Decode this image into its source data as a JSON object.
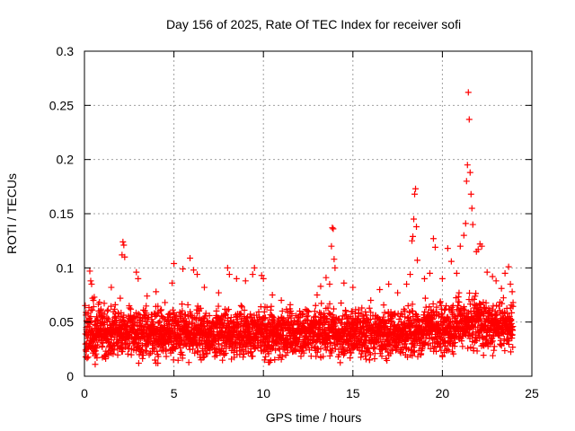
{
  "chart_data": {
    "type": "scatter",
    "title": "Day 156 of 2025, Rate Of TEC Index for receiver sofi",
    "xlabel": "GPS time / hours",
    "ylabel": "ROTI / TECUs",
    "xlim": [
      0,
      25
    ],
    "ylim": [
      0,
      0.3
    ],
    "x_ticks": [
      0,
      5,
      10,
      15,
      20,
      25
    ],
    "x_tick_labels": [
      "0",
      "5",
      "10",
      "15",
      "20",
      "25"
    ],
    "y_ticks": [
      0,
      0.05,
      0.1,
      0.15,
      0.2,
      0.25,
      0.3
    ],
    "y_tick_labels": [
      "0",
      "0.05",
      "0.1",
      "0.15",
      "0.2",
      "0.25",
      "0.3"
    ],
    "grid": true,
    "marker": "+",
    "colors": {
      "points": "#ff0000",
      "grid": "#a0a0a0",
      "axes": "#000000"
    },
    "series": [
      {
        "name": "ROTI",
        "points": [
          [
            0.1,
            0.045
          ],
          [
            0.2,
            0.058
          ],
          [
            0.3,
            0.097
          ],
          [
            0.35,
            0.088
          ],
          [
            0.4,
            0.085
          ],
          [
            0.45,
            0.072
          ],
          [
            0.5,
            0.07
          ],
          [
            0.55,
            0.073
          ],
          [
            0.6,
            0.011
          ],
          [
            0.7,
            0.017
          ],
          [
            1.0,
            0.055
          ],
          [
            1.5,
            0.082
          ],
          [
            2.0,
            0.072
          ],
          [
            2.1,
            0.112
          ],
          [
            2.15,
            0.124
          ],
          [
            2.2,
            0.121
          ],
          [
            2.25,
            0.11
          ],
          [
            2.5,
            0.065
          ],
          [
            2.9,
            0.096
          ],
          [
            3.0,
            0.09
          ],
          [
            3.5,
            0.074
          ],
          [
            4.0,
            0.078
          ],
          [
            4.5,
            0.068
          ],
          [
            4.9,
            0.086
          ],
          [
            5.0,
            0.104
          ],
          [
            5.5,
            0.099
          ],
          [
            5.9,
            0.109
          ],
          [
            6.1,
            0.098
          ],
          [
            6.3,
            0.094
          ],
          [
            6.7,
            0.082
          ],
          [
            7.5,
            0.077
          ],
          [
            8.0,
            0.1
          ],
          [
            8.1,
            0.094
          ],
          [
            8.5,
            0.09
          ],
          [
            9.0,
            0.088
          ],
          [
            9.4,
            0.094
          ],
          [
            9.5,
            0.1
          ],
          [
            9.9,
            0.093
          ],
          [
            10.0,
            0.09
          ],
          [
            10.5,
            0.075
          ],
          [
            11.0,
            0.07
          ],
          [
            11.5,
            0.066
          ],
          [
            12.5,
            0.06
          ],
          [
            13.0,
            0.075
          ],
          [
            13.2,
            0.083
          ],
          [
            13.5,
            0.091
          ],
          [
            13.7,
            0.085
          ],
          [
            13.8,
            0.12
          ],
          [
            13.85,
            0.137
          ],
          [
            13.9,
            0.136
          ],
          [
            13.95,
            0.108
          ],
          [
            14.0,
            0.1
          ],
          [
            14.5,
            0.086
          ],
          [
            15.0,
            0.082
          ],
          [
            15.5,
            0.063
          ],
          [
            16.0,
            0.07
          ],
          [
            16.5,
            0.08
          ],
          [
            17.0,
            0.085
          ],
          [
            17.5,
            0.077
          ],
          [
            18.0,
            0.085
          ],
          [
            18.2,
            0.094
          ],
          [
            18.3,
            0.125
          ],
          [
            18.35,
            0.129
          ],
          [
            18.4,
            0.145
          ],
          [
            18.45,
            0.168
          ],
          [
            18.5,
            0.173
          ],
          [
            18.55,
            0.138
          ],
          [
            18.6,
            0.107
          ],
          [
            19.0,
            0.09
          ],
          [
            19.3,
            0.095
          ],
          [
            19.5,
            0.127
          ],
          [
            19.6,
            0.119
          ],
          [
            20.0,
            0.09
          ],
          [
            20.3,
            0.118
          ],
          [
            20.5,
            0.106
          ],
          [
            20.8,
            0.095
          ],
          [
            21.0,
            0.12
          ],
          [
            21.2,
            0.13
          ],
          [
            21.3,
            0.141
          ],
          [
            21.35,
            0.18
          ],
          [
            21.4,
            0.195
          ],
          [
            21.45,
            0.262
          ],
          [
            21.5,
            0.237
          ],
          [
            21.55,
            0.188
          ],
          [
            21.6,
            0.168
          ],
          [
            21.65,
            0.155
          ],
          [
            21.7,
            0.14
          ],
          [
            21.9,
            0.115
          ],
          [
            22.0,
            0.117
          ],
          [
            22.1,
            0.122
          ],
          [
            22.2,
            0.12
          ],
          [
            22.5,
            0.096
          ],
          [
            22.8,
            0.092
          ],
          [
            23.0,
            0.088
          ],
          [
            23.3,
            0.081
          ],
          [
            23.5,
            0.095
          ],
          [
            23.7,
            0.101
          ],
          [
            23.8,
            0.085
          ],
          [
            23.9,
            0.078
          ],
          [
            23.95,
            0.068
          ]
        ]
      }
    ]
  }
}
